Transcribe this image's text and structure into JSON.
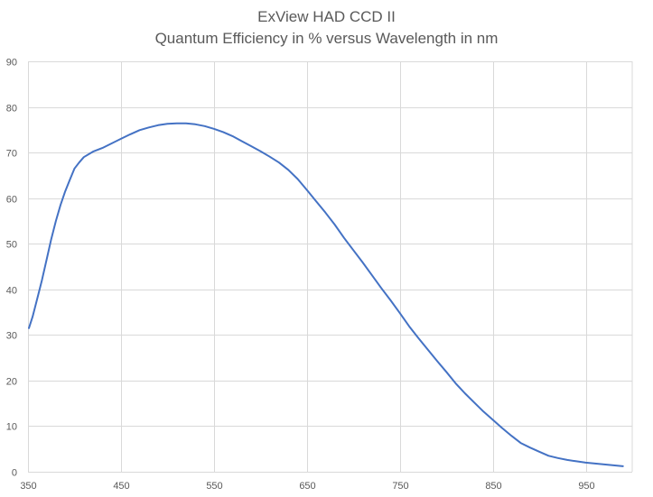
{
  "chart_data": {
    "type": "line",
    "title_line1": "ExView HAD CCD II",
    "title_line2": "Quantum Efficiency in % versus Wavelength in nm",
    "xlabel": "",
    "ylabel": "",
    "xlim": [
      350,
      1000
    ],
    "ylim": [
      0,
      90
    ],
    "x_ticks": [
      350,
      450,
      550,
      650,
      750,
      850,
      950
    ],
    "y_ticks": [
      0,
      10,
      20,
      30,
      40,
      50,
      60,
      70,
      80,
      90
    ],
    "grid": true,
    "line_color": "#4472C4",
    "series": [
      {
        "x": [
          351,
          355,
          360,
          365,
          370,
          375,
          380,
          385,
          390,
          395,
          400,
          405,
          410,
          420,
          430,
          440,
          450,
          460,
          470,
          480,
          490,
          500,
          510,
          520,
          530,
          540,
          550,
          560,
          570,
          580,
          590,
          600,
          610,
          620,
          630,
          640,
          650,
          660,
          670,
          680,
          690,
          700,
          710,
          720,
          730,
          740,
          750,
          760,
          770,
          780,
          790,
          800,
          810,
          820,
          830,
          840,
          850,
          860,
          870,
          880,
          890,
          900,
          910,
          920,
          930,
          940,
          950,
          960,
          970,
          980,
          990
        ],
        "y": [
          31.5,
          34,
          38,
          42,
          46.5,
          51,
          55,
          58.5,
          61.5,
          64,
          66.5,
          67.8,
          69,
          70.2,
          71,
          72,
          73,
          74,
          74.9,
          75.5,
          76,
          76.3,
          76.4,
          76.4,
          76.2,
          75.8,
          75.2,
          74.5,
          73.6,
          72.5,
          71.4,
          70.3,
          69.1,
          67.8,
          66.2,
          64.2,
          61.8,
          59.3,
          56.8,
          54.2,
          51.3,
          48.6,
          45.9,
          43.1,
          40.3,
          37.6,
          34.8,
          31.9,
          29.3,
          26.8,
          24.3,
          21.9,
          19.4,
          17.2,
          15.2,
          13.2,
          11.4,
          9.6,
          7.9,
          6.3,
          5.3,
          4.4,
          3.5,
          3.0,
          2.6,
          2.3,
          2.0,
          1.8,
          1.6,
          1.4,
          1.2
        ]
      }
    ]
  }
}
